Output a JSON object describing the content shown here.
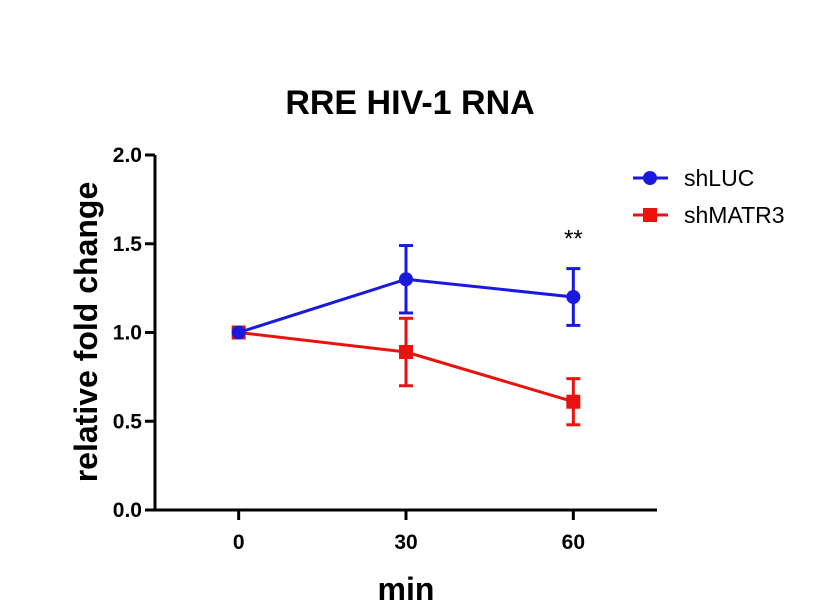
{
  "chart_data": {
    "type": "line",
    "title": "RRE HIV-1 RNA",
    "xlabel": "min",
    "ylabel": "relative fold change",
    "x": [
      0,
      30,
      60
    ],
    "x_tick_labels": [
      "0",
      "30",
      "60"
    ],
    "xlim": [
      -15,
      75
    ],
    "ylim": [
      0,
      2.0
    ],
    "y_ticks": [
      0.0,
      0.5,
      1.0,
      1.5,
      2.0
    ],
    "y_tick_labels": [
      "0.0",
      "0.5",
      "1.0",
      "1.5",
      "2.0"
    ],
    "grid": false,
    "legend_position": "top-right",
    "series": [
      {
        "name": "shLUC",
        "color": "#1a1adf",
        "marker": "circle",
        "values": [
          1.0,
          1.3,
          1.2
        ],
        "errors": [
          0.0,
          0.19,
          0.16
        ]
      },
      {
        "name": "shMATR3",
        "color": "#e8130f",
        "marker": "square",
        "values": [
          1.0,
          0.89,
          0.61
        ],
        "errors": [
          0.0,
          0.19,
          0.13
        ]
      }
    ],
    "annotations": [
      {
        "text": "**",
        "x": 60,
        "y": 1.53
      }
    ]
  }
}
